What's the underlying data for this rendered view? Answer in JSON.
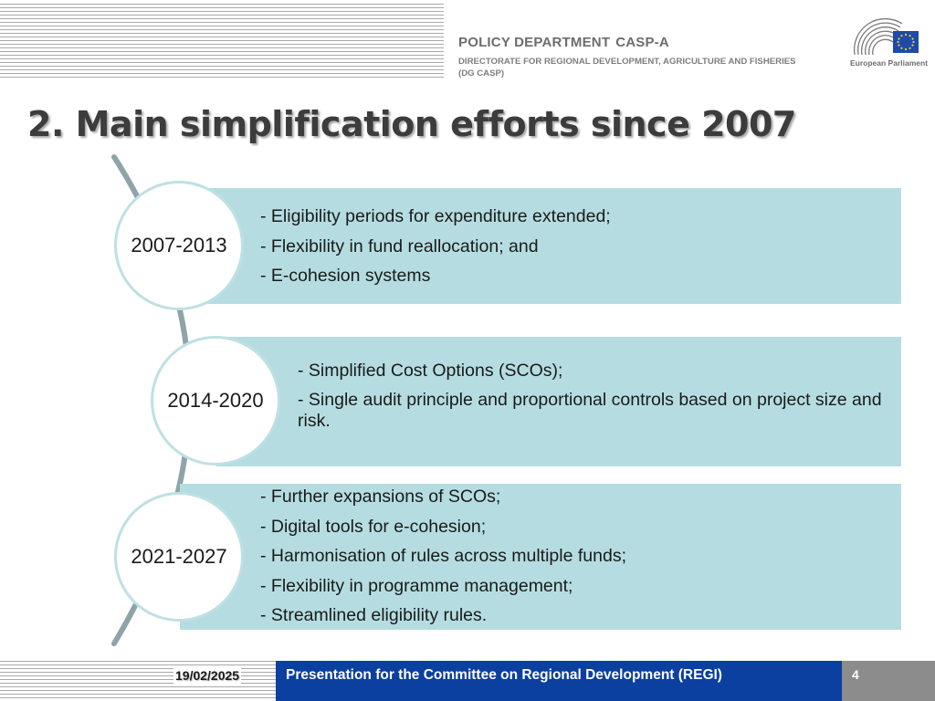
{
  "header": {
    "department": "POLICY DEPARTMENT",
    "department_code": "CASP-A",
    "directorate_line1": "DIRECTORATE FOR REGIONAL DEVELOPMENT, AGRICULTURE AND FISHERIES",
    "directorate_line2": "(DG CASP)",
    "logo_text": "European Parliament"
  },
  "title": "2. Main simplification efforts since 2007",
  "periods": [
    {
      "label": "2007-2013",
      "items": [
        "- Eligibility periods for expenditure extended;",
        "- Flexibility in fund reallocation; and",
        "- E-cohesion systems"
      ]
    },
    {
      "label": "2014-2020",
      "items": [
        "-  Simplified Cost Options (SCOs);",
        "- Single audit principle and proportional controls based on project size and risk."
      ]
    },
    {
      "label": "2021-2027",
      "items": [
        "- Further expansions of SCOs;",
        "- Digital tools for e-cohesion;",
        "- Harmonisation of rules across multiple funds;",
        "- Flexibility in programme management;",
        "- Streamlined eligibility rules."
      ]
    }
  ],
  "footer": {
    "date": "19/02/2025",
    "presentation": "Presentation for the Committee on Regional Development (REGI)",
    "page_number": "4"
  },
  "colors": {
    "band": "#b5dde1",
    "circle_border": "#bfe0e3",
    "arc": "#8fa3a8",
    "footer_bar": "#0b3fa0",
    "footer_page": "#8c8c8c",
    "title": "#3c3c3c"
  }
}
